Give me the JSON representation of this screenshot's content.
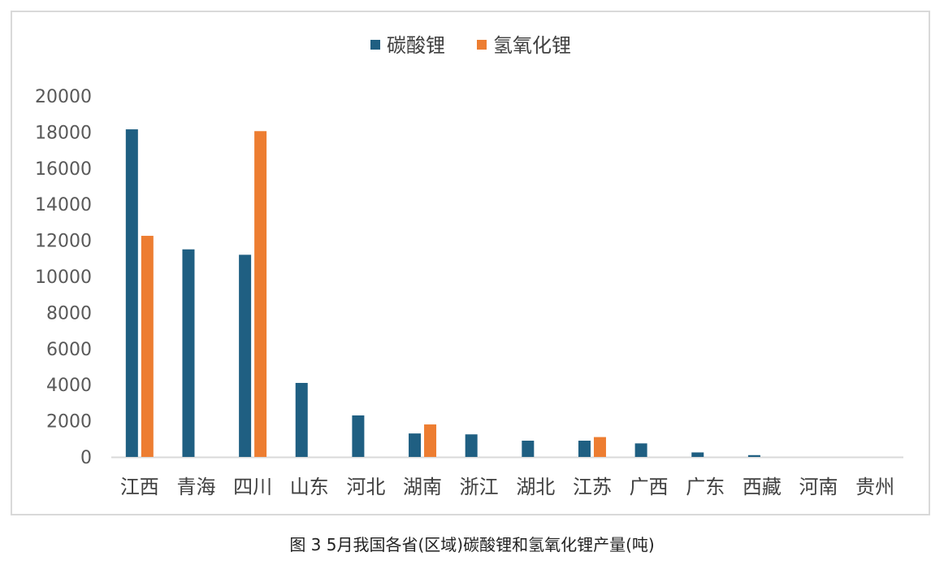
{
  "caption": "图 3 5月我国各省(区域)碳酸锂和氢氧化锂产量(吨)",
  "chart_data": {
    "type": "bar",
    "categories": [
      "江西",
      "青海",
      "四川",
      "山东",
      "河北",
      "湖南",
      "浙江",
      "湖北",
      "江苏",
      "广西",
      "广东",
      "西藏",
      "河南",
      "贵州"
    ],
    "series": [
      {
        "name": "碳酸锂",
        "color": "#1f5f82",
        "values": [
          18150,
          11500,
          11200,
          4100,
          2300,
          1300,
          1250,
          900,
          900,
          750,
          250,
          100,
          0,
          0
        ]
      },
      {
        "name": "氢氧化锂",
        "color": "#ed7d31",
        "values": [
          12250,
          0,
          18050,
          0,
          0,
          1800,
          0,
          0,
          1100,
          0,
          0,
          0,
          0,
          0
        ]
      }
    ],
    "ylim": [
      0,
      20000
    ],
    "yticks": [
      0,
      2000,
      4000,
      6000,
      8000,
      10000,
      12000,
      14000,
      16000,
      18000,
      20000
    ],
    "grid": false,
    "legend": "top-center",
    "title": "",
    "xlabel": "",
    "ylabel": ""
  }
}
